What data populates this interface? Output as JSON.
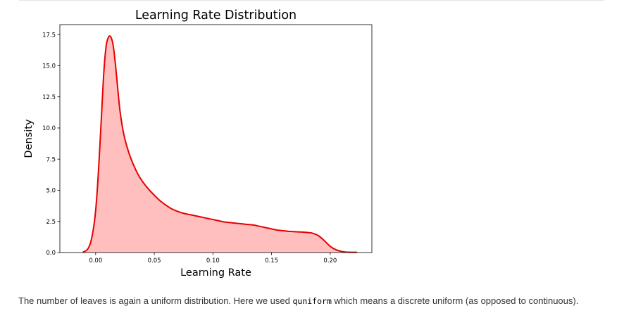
{
  "chart_data": {
    "type": "area",
    "title": "Learning Rate Distribution",
    "xlabel": "Learning Rate",
    "ylabel": "Density",
    "xlim": [
      -0.0305,
      0.2355
    ],
    "ylim": [
      0,
      18.3
    ],
    "x_ticks": [
      0.0,
      0.05,
      0.1,
      0.15,
      0.2
    ],
    "x_tick_labels": [
      "0.00",
      "0.05",
      "0.10",
      "0.15",
      "0.20"
    ],
    "y_ticks": [
      0.0,
      2.5,
      5.0,
      7.5,
      10.0,
      12.5,
      15.0,
      17.5
    ],
    "y_tick_labels": [
      "0.0",
      "2.5",
      "5.0",
      "7.5",
      "10.0",
      "12.5",
      "15.0",
      "17.5"
    ],
    "grid": false,
    "legend": "none",
    "series": [
      {
        "line_color": "#e60000",
        "fill_color": "#ffbfbf",
        "x": [
          -0.0105,
          -0.007,
          -0.004,
          -0.001,
          0.001,
          0.003,
          0.005,
          0.007,
          0.009,
          0.011,
          0.013,
          0.015,
          0.017,
          0.019,
          0.021,
          0.024,
          0.028,
          0.032,
          0.036,
          0.04,
          0.045,
          0.05,
          0.055,
          0.06,
          0.065,
          0.07,
          0.075,
          0.08,
          0.085,
          0.09,
          0.095,
          0.1,
          0.105,
          0.11,
          0.115,
          0.12,
          0.125,
          0.13,
          0.135,
          0.14,
          0.145,
          0.15,
          0.155,
          0.16,
          0.165,
          0.17,
          0.175,
          0.18,
          0.185,
          0.19,
          0.195,
          0.2,
          0.205,
          0.21,
          0.215,
          0.2225
        ],
        "y": [
          0.05,
          0.25,
          0.9,
          2.5,
          4.5,
          7.5,
          11.0,
          14.5,
          16.6,
          17.3,
          17.3,
          16.6,
          15.0,
          13.0,
          11.2,
          9.5,
          8.1,
          7.1,
          6.3,
          5.7,
          5.1,
          4.6,
          4.15,
          3.8,
          3.5,
          3.3,
          3.15,
          3.05,
          2.95,
          2.85,
          2.75,
          2.65,
          2.55,
          2.45,
          2.4,
          2.35,
          2.3,
          2.25,
          2.2,
          2.1,
          2.0,
          1.9,
          1.8,
          1.75,
          1.7,
          1.67,
          1.65,
          1.62,
          1.55,
          1.35,
          0.95,
          0.5,
          0.22,
          0.08,
          0.03,
          0.02
        ]
      }
    ]
  },
  "paragraph": {
    "before": "The number of leaves is again a uniform distribution. Here we used ",
    "code": "quniform",
    "after": " which means a discrete uniform (as opposed to continuous)."
  }
}
